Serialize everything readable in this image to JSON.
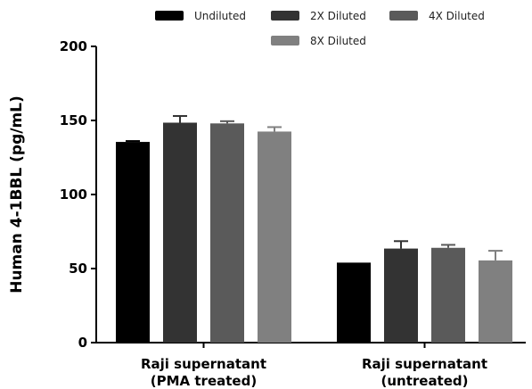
{
  "chart_data": {
    "type": "bar",
    "ylabel": "Human 4-1BBL (pg/mL)",
    "ylim": [
      0,
      200
    ],
    "yticks": [
      0,
      50,
      100,
      150,
      200
    ],
    "categories": [
      [
        "Raji supernatant",
        "(PMA treated)"
      ],
      [
        "Raji supernatant",
        "(untreated)"
      ]
    ],
    "series": [
      {
        "name": "Undiluted",
        "color": "#000000",
        "values": [
          135.5,
          54
        ],
        "errors": [
          0.6,
          0
        ]
      },
      {
        "name": "2X Diluted",
        "color": "#333333",
        "values": [
          148.5,
          63.5
        ],
        "errors": [
          4.5,
          5
        ]
      },
      {
        "name": "4X Diluted",
        "color": "#5a5a5a",
        "values": [
          148,
          64
        ],
        "errors": [
          1.5,
          2
        ]
      },
      {
        "name": "8X Diluted",
        "color": "#808080",
        "values": [
          142.5,
          55.5
        ],
        "errors": [
          3,
          6.5
        ]
      }
    ],
    "legend": "top",
    "grid": false
  }
}
